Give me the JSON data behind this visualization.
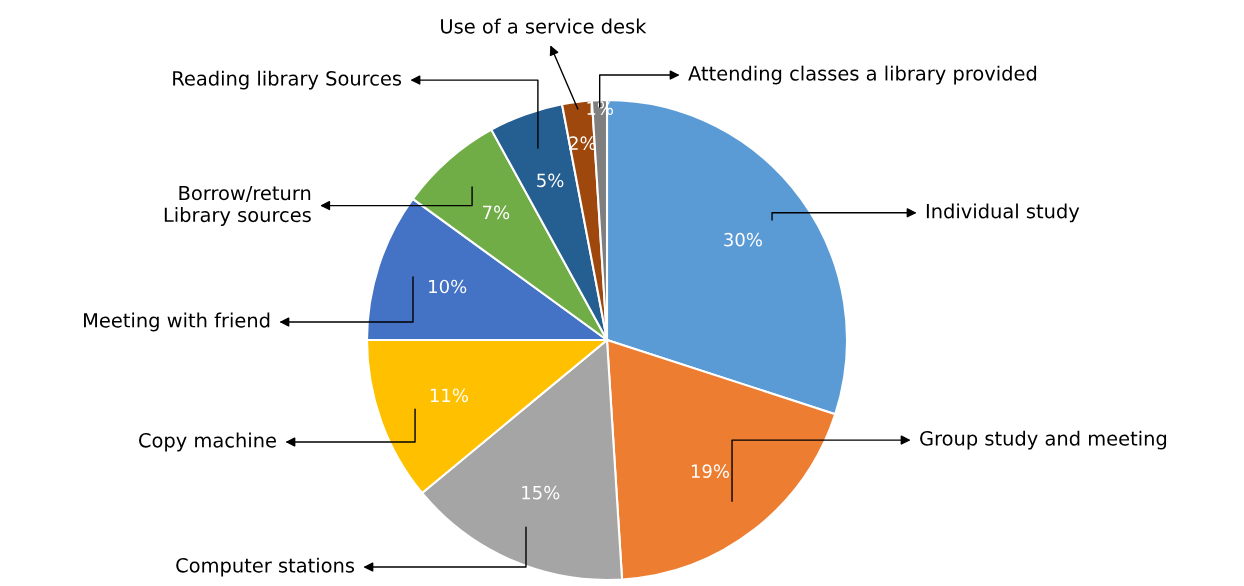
{
  "chart_data": {
    "type": "pie",
    "categories": [
      "Individual study",
      "Group study and meeting",
      "Computer stations",
      "Copy machine",
      "Meeting with friend",
      "Borrow/return\nLibrary sources",
      "Reading library Sources",
      "Use of a service desk",
      "Attending classes a library provided"
    ],
    "values": [
      30,
      19,
      15,
      11,
      10,
      7,
      5,
      2,
      1
    ],
    "value_labels": [
      "30%",
      "19%",
      "15%",
      "11%",
      "10%",
      "7%",
      "5%",
      "2%",
      "1%"
    ],
    "colors": [
      "#5b9bd5",
      "#ed7d31",
      "#a5a5a5",
      "#ffc000",
      "#4472c4",
      "#70ad47",
      "#255e91",
      "#9e480e",
      "#7f7f7f"
    ],
    "legend": false
  }
}
